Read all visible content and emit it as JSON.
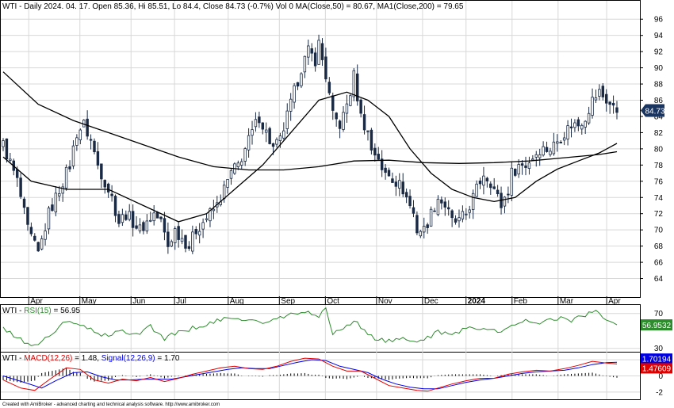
{
  "header": {
    "main": "WTI - Daily 2024. 04. 17. Open 85.36, Hi 85.51, Lo 84.4, Close 84.73 (-0.7%) Vol 0 MA(Close,50) = 80.67, MA1(Close,200) = 79.65",
    "rsi": {
      "prefix": "WTI - ",
      "name": "RSI(15)",
      "value": " = 56.95"
    },
    "macd": {
      "prefix": "WTI - ",
      "name": "MACD(12,26)",
      "value": " = 1.48, ",
      "signal_name": "Signal(12,26,9)",
      "signal_value": " = 1.70"
    }
  },
  "footer": "Created with AmiBroker - advanced charting and technical analysis software. http://www.amibroker.com",
  "colors": {
    "up_candle": "#ffffff",
    "down_candle": "#1a2a44",
    "ma": "#000000",
    "rsi": "#2e8b2e",
    "macd": "#e00000",
    "signal": "#0000e6",
    "histogram": "#000000",
    "grid": "#d8d8d8",
    "last_price_tag": "#1a3560",
    "rsi_tag": "#2e8b2e"
  },
  "chart_data": [
    {
      "type": "candlestick",
      "title": "WTI - Daily",
      "x_labels": [
        "Apr",
        "May",
        "Jun",
        "Jul",
        "Aug",
        "Sep",
        "Oct",
        "Nov",
        "Dec",
        "2024",
        "Feb",
        "Mar",
        "Apr"
      ],
      "ylim": [
        62,
        97
      ],
      "yticks": [
        64,
        66,
        68,
        70,
        72,
        74,
        76,
        78,
        80,
        82,
        84,
        86,
        88,
        90,
        92,
        94,
        96
      ],
      "last_price": 84.73,
      "last_price_label": "84.73",
      "ohlc": {
        "date": "2024-04-17",
        "open": 85.36,
        "high": 85.51,
        "low": 84.4,
        "close": 84.73
      },
      "close_path": [
        [
          0,
          80.5
        ],
        [
          4,
          76
        ],
        [
          7,
          70
        ],
        [
          10,
          67
        ],
        [
          13,
          72
        ],
        [
          16,
          75
        ],
        [
          19,
          78
        ],
        [
          21,
          82
        ],
        [
          23,
          83
        ],
        [
          25,
          81
        ],
        [
          27,
          78
        ],
        [
          29,
          76
        ],
        [
          31,
          74
        ],
        [
          33,
          71
        ],
        [
          35,
          72
        ],
        [
          37,
          71
        ],
        [
          39,
          70
        ],
        [
          41,
          71
        ],
        [
          43,
          72
        ],
        [
          45,
          71
        ],
        [
          47,
          68
        ],
        [
          49,
          70
        ],
        [
          51,
          69
        ],
        [
          53,
          68
        ],
        [
          55,
          70
        ],
        [
          57,
          71
        ],
        [
          59,
          72
        ],
        [
          61,
          73
        ],
        [
          63,
          75
        ],
        [
          65,
          77
        ],
        [
          67,
          78
        ],
        [
          69,
          80
        ],
        [
          71,
          82
        ],
        [
          73,
          84
        ],
        [
          75,
          82
        ],
        [
          77,
          80
        ],
        [
          79,
          81
        ],
        [
          81,
          84
        ],
        [
          83,
          87
        ],
        [
          85,
          90
        ],
        [
          87,
          92
        ],
        [
          89,
          91
        ],
        [
          90,
          93
        ],
        [
          92,
          89
        ],
        [
          94,
          84
        ],
        [
          96,
          83
        ],
        [
          97,
          84
        ],
        [
          99,
          87
        ],
        [
          100,
          89
        ],
        [
          102,
          84
        ],
        [
          104,
          82
        ],
        [
          105,
          80
        ],
        [
          107,
          79
        ],
        [
          108,
          77
        ],
        [
          110,
          77
        ],
        [
          112,
          76
        ],
        [
          114,
          75
        ],
        [
          115,
          74
        ],
        [
          117,
          72
        ],
        [
          118,
          70
        ],
        [
          120,
          70
        ],
        [
          122,
          72
        ],
        [
          124,
          74
        ],
        [
          126,
          73
        ],
        [
          128,
          71
        ],
        [
          130,
          71
        ],
        [
          132,
          72
        ],
        [
          133,
          73
        ],
        [
          135,
          75
        ],
        [
          137,
          77
        ],
        [
          139,
          76
        ],
        [
          141,
          74
        ],
        [
          142,
          73
        ],
        [
          144,
          75
        ],
        [
          145,
          77
        ],
        [
          147,
          78
        ],
        [
          149,
          78
        ],
        [
          151,
          79
        ],
        [
          153,
          80
        ],
        [
          155,
          80
        ],
        [
          156,
          80
        ],
        [
          158,
          81
        ],
        [
          160,
          82
        ],
        [
          162,
          83
        ],
        [
          164,
          83
        ],
        [
          166,
          84
        ],
        [
          168,
          86
        ],
        [
          170,
          87
        ],
        [
          172,
          86
        ],
        [
          174,
          85
        ],
        [
          175,
          84.73
        ]
      ],
      "ma50": [
        [
          0,
          79
        ],
        [
          8,
          76
        ],
        [
          18,
          75
        ],
        [
          30,
          75
        ],
        [
          40,
          73
        ],
        [
          50,
          71
        ],
        [
          58,
          72
        ],
        [
          66,
          75
        ],
        [
          74,
          78
        ],
        [
          82,
          82
        ],
        [
          90,
          86
        ],
        [
          98,
          87
        ],
        [
          104,
          86
        ],
        [
          110,
          84
        ],
        [
          116,
          80
        ],
        [
          122,
          77
        ],
        [
          128,
          75
        ],
        [
          134,
          74
        ],
        [
          140,
          73.5
        ],
        [
          146,
          74
        ],
        [
          152,
          76
        ],
        [
          158,
          77.5
        ],
        [
          164,
          78.5
        ],
        [
          170,
          79.5
        ],
        [
          175,
          80.67
        ]
      ],
      "ma200": [
        [
          0,
          89.5
        ],
        [
          10,
          85.5
        ],
        [
          20,
          83.5
        ],
        [
          30,
          82
        ],
        [
          40,
          80.5
        ],
        [
          50,
          79
        ],
        [
          60,
          77.8
        ],
        [
          70,
          77.4
        ],
        [
          80,
          77.4
        ],
        [
          90,
          77.8
        ],
        [
          100,
          78.5
        ],
        [
          110,
          78.6
        ],
        [
          120,
          78.3
        ],
        [
          130,
          78.2
        ],
        [
          140,
          78.3
        ],
        [
          150,
          78.5
        ],
        [
          160,
          78.9
        ],
        [
          170,
          79.3
        ],
        [
          175,
          79.65
        ]
      ]
    },
    {
      "type": "line",
      "title": "RSI(15)",
      "ylim": [
        27,
        77
      ],
      "yticks": [
        30,
        70
      ],
      "last_value": 56.95,
      "last_value_label": "56.9532",
      "series": [
        {
          "name": "RSI(15)",
          "values": [
            [
              0,
              52
            ],
            [
              5,
              40
            ],
            [
              9,
              32
            ],
            [
              13,
              45
            ],
            [
              18,
              60
            ],
            [
              22,
              58
            ],
            [
              26,
              48
            ],
            [
              30,
              44
            ],
            [
              34,
              50
            ],
            [
              38,
              47
            ],
            [
              42,
              55
            ],
            [
              46,
              42
            ],
            [
              50,
              48
            ],
            [
              54,
              53
            ],
            [
              58,
              58
            ],
            [
              62,
              62
            ],
            [
              66,
              65
            ],
            [
              70,
              63
            ],
            [
              74,
              58
            ],
            [
              78,
              64
            ],
            [
              82,
              68
            ],
            [
              86,
              72
            ],
            [
              90,
              68
            ],
            [
              92,
              74
            ],
            [
              94,
              48
            ],
            [
              98,
              55
            ],
            [
              100,
              62
            ],
            [
              103,
              50
            ],
            [
              106,
              42
            ],
            [
              110,
              38
            ],
            [
              114,
              40
            ],
            [
              118,
              38
            ],
            [
              121,
              43
            ],
            [
              124,
              48
            ],
            [
              127,
              46
            ],
            [
              130,
              50
            ],
            [
              134,
              55
            ],
            [
              138,
              52
            ],
            [
              142,
              48
            ],
            [
              146,
              58
            ],
            [
              150,
              62
            ],
            [
              154,
              60
            ],
            [
              158,
              65
            ],
            [
              162,
              62
            ],
            [
              166,
              68
            ],
            [
              169,
              72
            ],
            [
              172,
              65
            ],
            [
              175,
              56.95
            ]
          ]
        }
      ]
    },
    {
      "type": "line",
      "title": "MACD(12,26)",
      "ylim": [
        -2.8,
        2.6
      ],
      "yticks": [
        -2,
        0,
        2
      ],
      "last_value": 1.48,
      "last_value_label": "1.47609",
      "signal_last_value": 1.7,
      "signal_last_label": "1.70194",
      "series": [
        {
          "name": "MACD(12,26)",
          "values": [
            [
              0,
              -0.5
            ],
            [
              5,
              -1.5
            ],
            [
              9,
              -1.8
            ],
            [
              13,
              -0.5
            ],
            [
              18,
              1.0
            ],
            [
              22,
              0.8
            ],
            [
              26,
              -0.5
            ],
            [
              30,
              -0.9
            ],
            [
              34,
              -0.4
            ],
            [
              38,
              -0.6
            ],
            [
              42,
              -0.2
            ],
            [
              46,
              -0.7
            ],
            [
              50,
              -0.3
            ],
            [
              54,
              0.2
            ],
            [
              58,
              0.6
            ],
            [
              62,
              1.0
            ],
            [
              66,
              1.2
            ],
            [
              70,
              0.9
            ],
            [
              74,
              0.8
            ],
            [
              78,
              1.2
            ],
            [
              82,
              1.8
            ],
            [
              86,
              2.2
            ],
            [
              90,
              2.1
            ],
            [
              94,
              1.2
            ],
            [
              98,
              0.6
            ],
            [
              102,
              0.6
            ],
            [
              106,
              -0.3
            ],
            [
              110,
              -1.2
            ],
            [
              114,
              -1.5
            ],
            [
              118,
              -1.8
            ],
            [
              121,
              -1.9
            ],
            [
              124,
              -1.5
            ],
            [
              128,
              -1.0
            ],
            [
              132,
              -0.6
            ],
            [
              136,
              -0.3
            ],
            [
              140,
              -0.3
            ],
            [
              144,
              0.2
            ],
            [
              148,
              0.5
            ],
            [
              152,
              0.7
            ],
            [
              156,
              0.6
            ],
            [
              160,
              0.9
            ],
            [
              164,
              1.3
            ],
            [
              168,
              1.8
            ],
            [
              172,
              1.6
            ],
            [
              175,
              1.48
            ]
          ]
        },
        {
          "name": "Signal(12,26,9)",
          "values": [
            [
              0,
              0.0
            ],
            [
              6,
              -0.8
            ],
            [
              11,
              -1.5
            ],
            [
              15,
              -0.6
            ],
            [
              20,
              0.4
            ],
            [
              24,
              0.5
            ],
            [
              28,
              -0.1
            ],
            [
              32,
              -0.5
            ],
            [
              36,
              -0.5
            ],
            [
              40,
              -0.4
            ],
            [
              44,
              -0.4
            ],
            [
              48,
              -0.4
            ],
            [
              52,
              -0.1
            ],
            [
              56,
              0.2
            ],
            [
              60,
              0.5
            ],
            [
              64,
              0.8
            ],
            [
              68,
              1.0
            ],
            [
              72,
              0.9
            ],
            [
              76,
              0.9
            ],
            [
              80,
              1.3
            ],
            [
              84,
              1.7
            ],
            [
              88,
              2.0
            ],
            [
              92,
              1.9
            ],
            [
              96,
              1.2
            ],
            [
              100,
              0.8
            ],
            [
              104,
              0.4
            ],
            [
              108,
              -0.4
            ],
            [
              112,
              -1.0
            ],
            [
              116,
              -1.4
            ],
            [
              120,
              -1.6
            ],
            [
              124,
              -1.6
            ],
            [
              128,
              -1.2
            ],
            [
              132,
              -0.8
            ],
            [
              136,
              -0.5
            ],
            [
              140,
              -0.3
            ],
            [
              144,
              0.0
            ],
            [
              148,
              0.3
            ],
            [
              152,
              0.5
            ],
            [
              156,
              0.6
            ],
            [
              160,
              0.7
            ],
            [
              164,
              1.0
            ],
            [
              168,
              1.4
            ],
            [
              172,
              1.65
            ],
            [
              175,
              1.7
            ]
          ]
        }
      ]
    }
  ]
}
